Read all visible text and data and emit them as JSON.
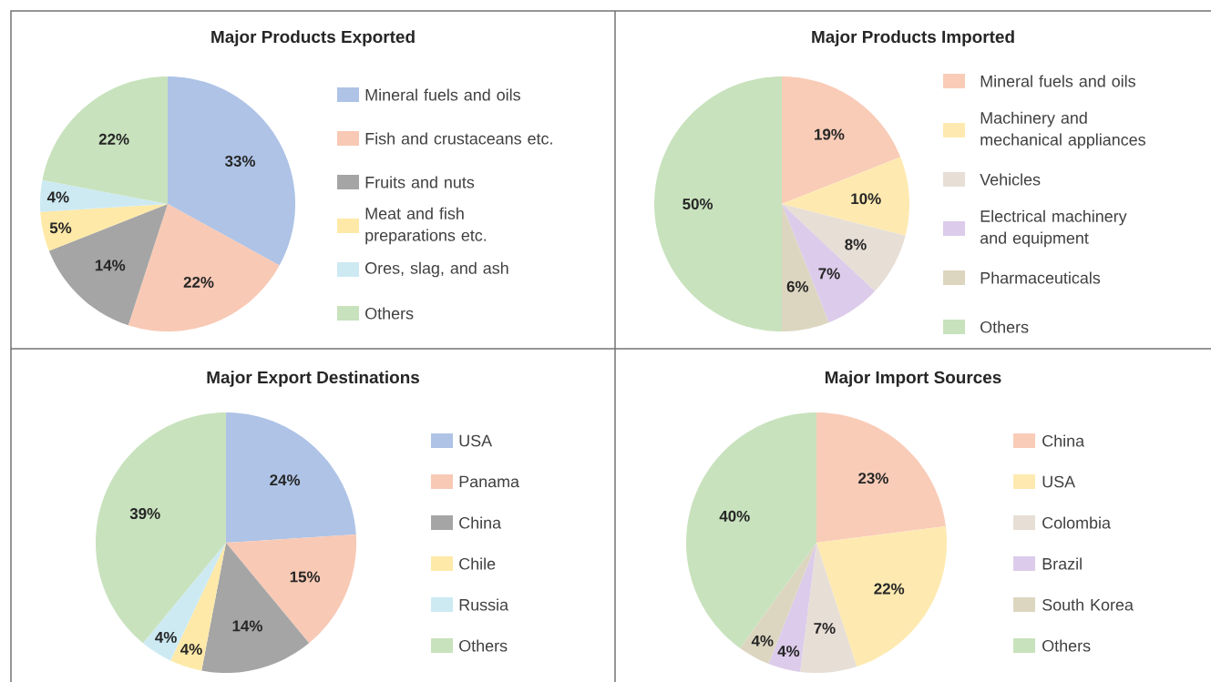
{
  "chart_data": [
    {
      "type": "pie",
      "title": "Major Products Exported",
      "categories": [
        "Mineral fuels and oils",
        "Fish and crustaceans etc.",
        "Fruits and nuts",
        "Meat and fish preparations etc.",
        "Ores, slag, and ash",
        "Others"
      ],
      "values": [
        33,
        22,
        14,
        5,
        4,
        22
      ],
      "value_labels": [
        "33%",
        "22%",
        "14%",
        "5%",
        "4%",
        "22%"
      ],
      "colors": [
        "#aec3e6",
        "#f8c9b5",
        "#a5a5a5",
        "#fee9a8",
        "#cdeaf3",
        "#c8e2bd"
      ],
      "legend": "right"
    },
    {
      "type": "pie",
      "title": "Major Products Imported",
      "categories": [
        "Mineral fuels and oils",
        "Machinery and mechanical appliances",
        "Vehicles",
        "Electrical machinery and equipment",
        "Pharmaceuticals",
        "Others"
      ],
      "values": [
        19,
        10,
        8,
        7,
        6,
        50
      ],
      "value_labels": [
        "19%",
        "10%",
        "8%",
        "7%",
        "6%",
        "50%"
      ],
      "colors": [
        "#f9ccb8",
        "#feeab0",
        "#e7ded6",
        "#dccbea",
        "#dcd6c0",
        "#c8e2bd"
      ],
      "legend": "right"
    },
    {
      "type": "pie",
      "title": "Major Export Destinations",
      "categories": [
        "USA",
        "Panama",
        "China",
        "Chile",
        "Russia",
        "Others"
      ],
      "values": [
        24,
        15,
        14,
        4,
        4,
        39
      ],
      "value_labels": [
        "24%",
        "15%",
        "14%",
        "4%",
        "4%",
        "39%"
      ],
      "colors": [
        "#aec3e6",
        "#f8c9b5",
        "#a5a5a5",
        "#fee9a8",
        "#cdeaf3",
        "#c8e2bd"
      ],
      "legend": "right"
    },
    {
      "type": "pie",
      "title": "Major Import Sources",
      "categories": [
        "China",
        "USA",
        "Colombia",
        "Brazil",
        "South Korea",
        "Others"
      ],
      "values": [
        23,
        22,
        7,
        4,
        4,
        40
      ],
      "value_labels": [
        "23%",
        "22%",
        "7%",
        "4%",
        "4%",
        "40%"
      ],
      "colors": [
        "#f9ccb8",
        "#feeab0",
        "#e7ded6",
        "#dccbea",
        "#dcd6c0",
        "#c8e2bd"
      ],
      "legend": "right"
    }
  ]
}
